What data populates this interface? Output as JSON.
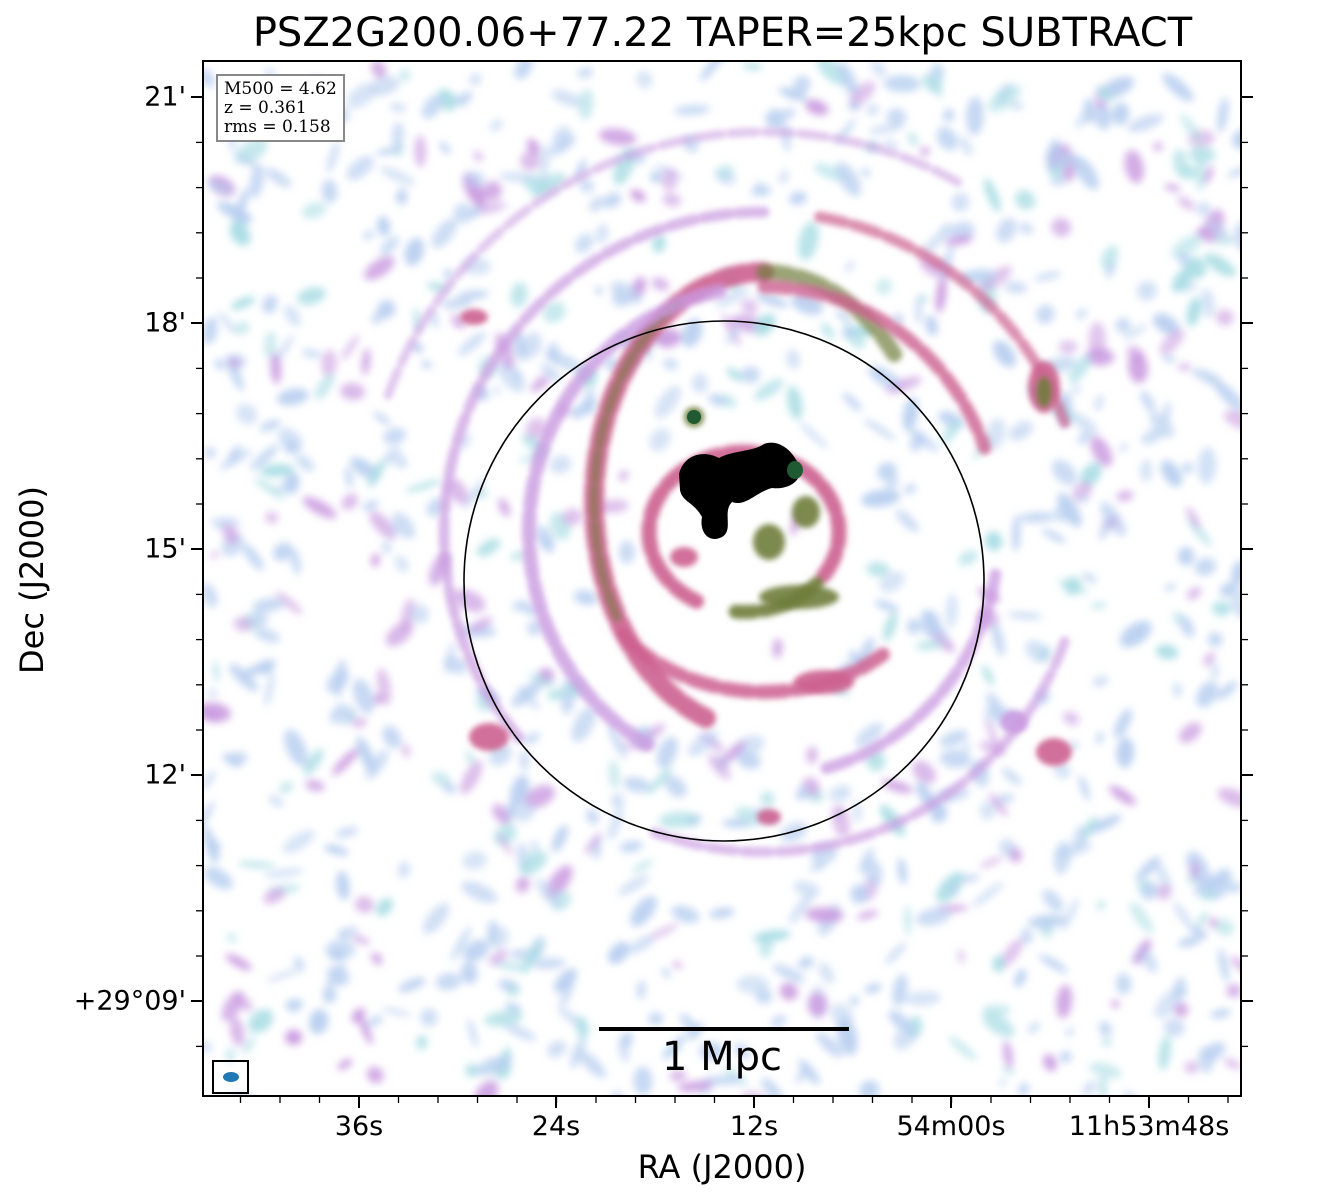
{
  "chart_data": {
    "type": "heatmap",
    "title": "PSZ2G200.06+77.22 TAPER=25kpc SUBTRACT",
    "xlabel": "RA (J2000)",
    "ylabel": "Dec (J2000)",
    "x_tick_labels": [
      "36s",
      "24s",
      "12s",
      "54m00s",
      "11h53m48s"
    ],
    "y_tick_labels": [
      "21'",
      "18'",
      "15'",
      "12'",
      "+29°09'"
    ],
    "info": {
      "m500": "M500 = 4.62",
      "z": "z = 0.361",
      "rms": "rms = 0.158"
    },
    "scalebar_label": "1 Mpc",
    "colors": {
      "faint": "#b8cff0",
      "faint_alt": "#a9dde4",
      "mid": "#c99ae0",
      "strong": "#cc5f8f",
      "very_strong": "#6f7d3a",
      "peak": "#1f5a33",
      "core": "#000000",
      "beam": "#1f77b4"
    }
  }
}
